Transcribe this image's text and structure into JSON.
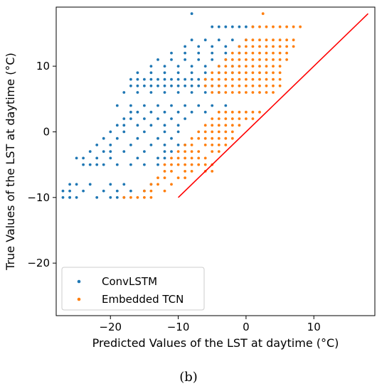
{
  "panel_label": "(b)",
  "chart_data": {
    "type": "scatter",
    "xlabel": "Predicted Values of the LST at daytime (°C)",
    "ylabel": "True Values of the LST at daytime (°C)",
    "xlim": [
      -28,
      19
    ],
    "ylim": [
      -28,
      19
    ],
    "xticks": [
      -20,
      -10,
      0,
      10
    ],
    "yticks": [
      -20,
      -10,
      0,
      10
    ],
    "xtick_labels": [
      "−20",
      "−10",
      "0",
      "10"
    ],
    "ytick_labels": [
      "−20",
      "−10",
      "0",
      "10"
    ],
    "grid": false,
    "legend_position": "lower-left",
    "series": [
      {
        "name": "ConvLSTM",
        "color": "#1f77b4",
        "x": [
          -27,
          -26,
          -26,
          -25,
          -22,
          -20,
          -19,
          -18,
          -27,
          -26,
          -24,
          -21,
          -19,
          -17,
          -15,
          -26,
          -25,
          -23,
          -20,
          -18,
          -14,
          -24,
          -23,
          -22,
          -21,
          -19,
          -17,
          -15,
          -13,
          -25,
          -24,
          -22,
          -20,
          -16,
          -13,
          -12,
          -23,
          -21,
          -20,
          -18,
          -15,
          -12,
          -11,
          -22,
          -20,
          -17,
          -14,
          -12,
          -10,
          -9,
          -21,
          -19,
          -16,
          -13,
          -11,
          -20,
          -18,
          -15,
          -12,
          -10,
          -19,
          -18,
          -16,
          -14,
          -12,
          -10,
          -18,
          -17,
          -15,
          -13,
          -11,
          -9,
          -17,
          -16,
          -14,
          -12,
          -10,
          -8,
          -6,
          -19,
          -17,
          -15,
          -13,
          -11,
          -9,
          -7,
          -5,
          -3,
          -18,
          -16,
          -14,
          -12,
          -10,
          -8,
          -6,
          -4,
          -17,
          -16,
          -15,
          -14,
          -13,
          -12,
          -11,
          -10,
          -9,
          -8,
          -7,
          -6,
          -5,
          -4,
          -17,
          -16,
          -15,
          -14,
          -13,
          -12,
          -11,
          -10,
          -9,
          -8,
          -7,
          -6,
          -16,
          -14,
          -12,
          -10,
          -8,
          -6,
          -4,
          -2,
          -14,
          -12,
          -10,
          -8,
          -6,
          -4,
          -2,
          -13,
          -11,
          -9,
          -7,
          -5,
          -3,
          -11,
          -9,
          -7,
          -5,
          -3,
          -1,
          -9,
          -7,
          -5,
          -3,
          -1,
          -8,
          -6,
          -4,
          -2,
          0,
          -5,
          -4,
          -3,
          -2,
          -1,
          0,
          1,
          -8
        ],
        "y": [
          -10,
          -10,
          -10,
          -10,
          -10,
          -10,
          -10,
          -10,
          -9,
          -9,
          -9,
          -9,
          -9,
          -9,
          -9,
          -8,
          -8,
          -8,
          -8,
          -8,
          -8,
          -5,
          -5,
          -5,
          -5,
          -5,
          -5,
          -5,
          -5,
          -4,
          -4,
          -4,
          -4,
          -4,
          -4,
          -4,
          -3,
          -3,
          -3,
          -3,
          -3,
          -3,
          -3,
          -2,
          -2,
          -2,
          -2,
          -2,
          -2,
          -2,
          -1,
          -1,
          -1,
          -1,
          -1,
          0,
          0,
          0,
          0,
          0,
          1,
          1,
          1,
          1,
          1,
          1,
          2,
          2,
          2,
          2,
          2,
          2,
          3,
          3,
          3,
          3,
          3,
          3,
          3,
          4,
          4,
          4,
          4,
          4,
          4,
          4,
          4,
          4,
          6,
          6,
          6,
          6,
          6,
          6,
          6,
          6,
          7,
          7,
          7,
          7,
          7,
          7,
          7,
          7,
          7,
          7,
          7,
          7,
          7,
          7,
          8,
          8,
          8,
          8,
          8,
          8,
          8,
          8,
          8,
          8,
          8,
          8,
          9,
          9,
          9,
          9,
          9,
          9,
          9,
          9,
          10,
          10,
          10,
          10,
          10,
          10,
          10,
          11,
          11,
          11,
          11,
          11,
          11,
          12,
          12,
          12,
          12,
          12,
          12,
          13,
          13,
          13,
          13,
          13,
          14,
          14,
          14,
          14,
          14,
          16,
          16,
          16,
          16,
          16,
          16,
          16,
          18
        ]
      },
      {
        "name": "Embedded TCN",
        "color": "#ff7f0e",
        "x": [
          -18,
          -17,
          -16,
          -15,
          -14,
          -15,
          -14,
          -12,
          -14,
          -13,
          -11,
          -13,
          -12,
          -10,
          -9,
          -12,
          -11,
          -9,
          -8,
          -6,
          -5,
          -12,
          -11,
          -10,
          -9,
          -8,
          -7,
          -6,
          -11,
          -10,
          -9,
          -8,
          -7,
          -6,
          -10,
          -9,
          -8,
          -7,
          -5,
          -4,
          -9,
          -8,
          -6,
          -5,
          -4,
          -3,
          -8,
          -7,
          -6,
          -5,
          -4,
          -3,
          -2,
          -7,
          -6,
          -5,
          -4,
          -3,
          -2,
          -6,
          -5,
          -4,
          -3,
          -2,
          -1,
          -5,
          -4,
          -3,
          -2,
          -1,
          0,
          1,
          -4,
          -3,
          -2,
          -1,
          0,
          1,
          2,
          -5,
          -4,
          -3,
          -2,
          -1,
          0,
          1,
          2,
          3,
          4,
          -6,
          -5,
          -4,
          -3,
          -2,
          -1,
          0,
          1,
          2,
          3,
          4,
          5,
          -6,
          -5,
          -4,
          -3,
          -2,
          -1,
          0,
          1,
          2,
          3,
          4,
          5,
          -5,
          -4,
          -3,
          -2,
          -1,
          0,
          1,
          2,
          3,
          4,
          5,
          -4,
          -3,
          -2,
          -1,
          0,
          1,
          2,
          3,
          4,
          5,
          -3,
          -2,
          -1,
          0,
          1,
          2,
          3,
          4,
          5,
          6,
          -2,
          -1,
          0,
          1,
          2,
          3,
          4,
          5,
          6,
          -1,
          0,
          1,
          2,
          3,
          4,
          5,
          6,
          7,
          0,
          1,
          2,
          3,
          4,
          5,
          6,
          7,
          1,
          2,
          3,
          4,
          5,
          6,
          7,
          8,
          2.5,
          -5
        ],
        "y": [
          -10,
          -10,
          -10,
          -10,
          -10,
          -9,
          -9,
          -9,
          -8,
          -8,
          -8,
          -7,
          -7,
          -7,
          -7,
          -6,
          -6,
          -6,
          -6,
          -6,
          -6,
          -5,
          -5,
          -5,
          -5,
          -5,
          -5,
          -5,
          -4,
          -4,
          -4,
          -4,
          -4,
          -4,
          -3,
          -3,
          -3,
          -3,
          -3,
          -3,
          -2,
          -2,
          -2,
          -2,
          -2,
          -2,
          -1,
          -1,
          -1,
          -1,
          -1,
          -1,
          -1,
          0,
          0,
          0,
          0,
          0,
          0,
          1,
          1,
          1,
          1,
          1,
          1,
          2,
          2,
          2,
          2,
          2,
          2,
          2,
          3,
          3,
          3,
          3,
          3,
          3,
          3,
          6,
          6,
          6,
          6,
          6,
          6,
          6,
          6,
          6,
          6,
          7,
          7,
          7,
          7,
          7,
          7,
          7,
          7,
          7,
          7,
          7,
          7,
          8,
          8,
          8,
          8,
          8,
          8,
          8,
          8,
          8,
          8,
          8,
          8,
          9,
          9,
          9,
          9,
          9,
          9,
          9,
          9,
          9,
          9,
          9,
          10,
          10,
          10,
          10,
          10,
          10,
          10,
          10,
          10,
          10,
          11,
          11,
          11,
          11,
          11,
          11,
          11,
          11,
          11,
          11,
          12,
          12,
          12,
          12,
          12,
          12,
          12,
          12,
          12,
          13,
          13,
          13,
          13,
          13,
          13,
          13,
          13,
          13,
          14,
          14,
          14,
          14,
          14,
          14,
          14,
          14,
          16,
          16,
          16,
          16,
          16,
          16,
          16,
          16,
          18,
          -5
        ]
      }
    ],
    "reference_line": {
      "color": "#ff0000",
      "x": [
        -10,
        18
      ],
      "y": [
        -10,
        18
      ]
    }
  }
}
